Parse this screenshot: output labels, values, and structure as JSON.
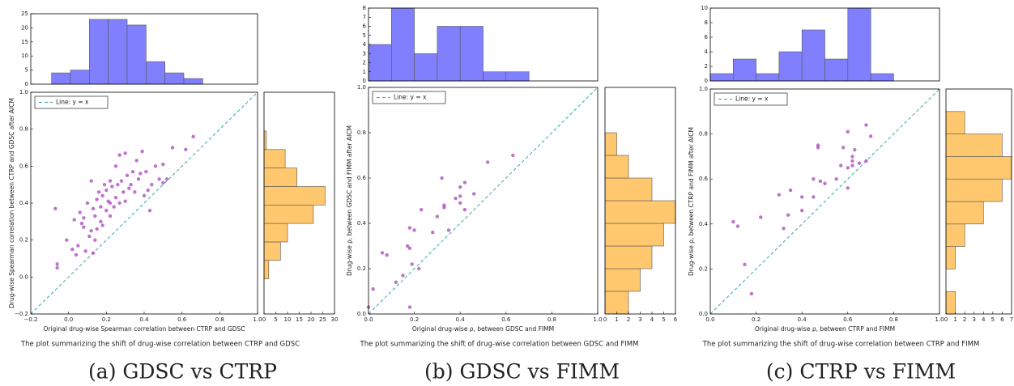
{
  "chart_data": [
    {
      "type": "histogram",
      "orientation": "vertical",
      "color": "#8080ff",
      "bins": [
        -0.09,
        0.01,
        0.11,
        0.21,
        0.31,
        0.41,
        0.51,
        0.61,
        0.71
      ],
      "values": [
        4,
        5,
        23,
        23,
        21,
        8,
        4,
        2
      ],
      "xlim": [
        -0.2,
        1.0
      ],
      "ylim": [
        0,
        25
      ],
      "yticks": [
        0,
        5,
        10,
        15,
        20,
        25
      ]
    },
    {
      "type": "scatter",
      "color": "#a845b8",
      "legend": "upper left",
      "xlabel": "Original drug-wise Spearman correlation between CTRP and GDSC",
      "ylabel": "Drug-wise Spearman correlation between CTRP and GDSC after AICM",
      "note": "The plot summarizing the shift of drug-wise correlation between CTRP and GDSC",
      "caption": "(a) GDSC vs CTRP",
      "reference_line": {
        "label": "Line: y = x",
        "color": "#3aa5a8"
      },
      "xlim": [
        -0.2,
        1.0
      ],
      "ylim": [
        -0.2,
        1.0
      ],
      "xticks": [
        {
          "value": -0.2,
          "label": "−0.2"
        },
        {
          "value": 0,
          "label": "0.0"
        },
        0.2,
        0.4,
        0.6,
        0.8,
        {
          "value": 1,
          "label": "1.0"
        }
      ],
      "yticks": [
        {
          "value": -0.2,
          "label": "−0.2"
        },
        {
          "value": 0,
          "label": "0.0"
        },
        0.2,
        0.4,
        0.6,
        0.8,
        {
          "value": 1,
          "label": "1.0"
        }
      ],
      "x": [
        -0.07,
        -0.06,
        -0.06,
        -0.01,
        0.02,
        0.03,
        0.04,
        0.05,
        0.06,
        0.07,
        0.08,
        0.09,
        0.1,
        0.11,
        0.12,
        0.12,
        0.13,
        0.13,
        0.14,
        0.15,
        0.15,
        0.16,
        0.17,
        0.17,
        0.18,
        0.19,
        0.2,
        0.2,
        0.21,
        0.22,
        0.22,
        0.23,
        0.24,
        0.25,
        0.25,
        0.26,
        0.27,
        0.27,
        0.28,
        0.29,
        0.3,
        0.3,
        0.31,
        0.32,
        0.33,
        0.34,
        0.35,
        0.36,
        0.37,
        0.38,
        0.39,
        0.4,
        0.41,
        0.42,
        0.43,
        0.44,
        0.46,
        0.48,
        0.5,
        0.5,
        0.52,
        0.55,
        0.62,
        0.66,
        0.18,
        0.14,
        0.22,
        0.08
      ],
      "values": [
        0.37,
        0.05,
        0.07,
        0.2,
        0.15,
        0.31,
        0.12,
        0.17,
        0.35,
        0.29,
        0.32,
        0.14,
        0.4,
        0.22,
        0.25,
        0.52,
        0.37,
        0.13,
        0.2,
        0.42,
        0.26,
        0.46,
        0.38,
        0.3,
        0.44,
        0.5,
        0.36,
        0.47,
        0.41,
        0.52,
        0.4,
        0.49,
        0.38,
        0.6,
        0.43,
        0.5,
        0.66,
        0.4,
        0.52,
        0.46,
        0.67,
        0.41,
        0.55,
        0.48,
        0.5,
        0.57,
        0.46,
        0.63,
        0.53,
        0.56,
        0.68,
        0.44,
        0.57,
        0.47,
        0.36,
        0.5,
        0.6,
        0.53,
        0.61,
        0.51,
        0.53,
        0.7,
        0.69,
        0.76,
        0.28,
        0.33,
        0.33,
        0.27
      ]
    },
    {
      "type": "histogram",
      "orientation": "horizontal",
      "color": "#ffc86e",
      "bins": [
        -0.01,
        0.09,
        0.19,
        0.29,
        0.39,
        0.49,
        0.59,
        0.69,
        0.79
      ],
      "values": [
        2,
        7,
        10,
        21,
        26,
        14,
        9,
        1
      ],
      "ylim": [
        -0.2,
        1.0
      ],
      "xlim": [
        0,
        30
      ],
      "xticks": [
        0,
        5,
        10,
        15,
        20,
        25,
        30
      ]
    },
    {
      "type": "histogram",
      "orientation": "vertical",
      "color": "#8080ff",
      "bins": [
        0.0,
        0.1,
        0.2,
        0.3,
        0.4,
        0.5,
        0.6,
        0.7
      ],
      "values": [
        4,
        8,
        3,
        6,
        6,
        1,
        1
      ],
      "xlim": [
        0,
        1.0
      ],
      "ylim": [
        0,
        8
      ],
      "yticks": [
        0,
        1,
        2,
        3,
        4,
        5,
        6,
        7,
        8
      ]
    },
    {
      "type": "scatter",
      "color": "#a845b8",
      "legend": "upper left",
      "xlabel": "Original drug-wise ρ, between GDSC and FIMM",
      "ylabel": "Drug-wise ρ, between GDSC and FIMM after AICM",
      "note": "The plot summarizing the shift of drug-wise correlation between GDSC and FIMM",
      "caption": "(b) GDSC vs FIMM",
      "reference_line": {
        "label": "Line: y = x",
        "color": "#3aa5a8"
      },
      "xlim": [
        0,
        1.0
      ],
      "ylim": [
        0,
        1.0
      ],
      "xticks": [
        {
          "value": 0,
          "label": "0.0"
        },
        0.2,
        0.4,
        0.6,
        0.8,
        {
          "value": 1,
          "label": "1.0"
        }
      ],
      "yticks": [
        {
          "value": 0,
          "label": "0.0"
        },
        0.2,
        0.4,
        0.6,
        0.8,
        {
          "value": 1,
          "label": "1.0"
        }
      ],
      "x": [
        0.0,
        0.02,
        0.06,
        0.08,
        0.12,
        0.15,
        0.18,
        0.18,
        0.19,
        0.18,
        0.2,
        0.22,
        0.23,
        0.28,
        0.3,
        0.32,
        0.33,
        0.33,
        0.35,
        0.38,
        0.4,
        0.4,
        0.42,
        0.42,
        0.46,
        0.52,
        0.63,
        0.4,
        0.17
      ],
      "values": [
        0.03,
        0.11,
        0.27,
        0.26,
        0.14,
        0.17,
        0.29,
        0.03,
        0.22,
        0.38,
        0.37,
        0.2,
        0.46,
        0.36,
        0.43,
        0.6,
        0.48,
        0.47,
        0.37,
        0.51,
        0.49,
        0.56,
        0.46,
        0.58,
        0.53,
        0.67,
        0.7,
        0.52,
        0.3
      ]
    },
    {
      "type": "histogram",
      "orientation": "horizontal",
      "color": "#ffc86e",
      "bins": [
        0.0,
        0.1,
        0.2,
        0.3,
        0.4,
        0.5,
        0.6,
        0.7,
        0.8
      ],
      "values": [
        2,
        3,
        4,
        5,
        6,
        4,
        2,
        1
      ],
      "ylim": [
        0,
        1.0
      ],
      "xlim": [
        0,
        6
      ],
      "xticks": [
        0,
        1,
        2,
        3,
        4,
        5,
        6
      ]
    },
    {
      "type": "histogram",
      "orientation": "vertical",
      "color": "#8080ff",
      "bins": [
        0.0,
        0.1,
        0.2,
        0.3,
        0.4,
        0.5,
        0.6,
        0.7,
        0.8
      ],
      "values": [
        1,
        3,
        1,
        4,
        7,
        3,
        10,
        1
      ],
      "xlim": [
        0,
        1.0
      ],
      "ylim": [
        0,
        10
      ],
      "yticks": [
        0,
        2,
        4,
        6,
        8,
        10
      ]
    },
    {
      "type": "scatter",
      "color": "#a845b8",
      "legend": "upper left",
      "xlabel": "Original drug-wise ρ, between CTRP and FIMM",
      "ylabel": "Drug-wise ρ, between CTRP and FIMM after AICM",
      "note": "The plot summarizing the shift of drug-wise correlation between CTRP and FIMM",
      "caption": "(c) CTRP vs FIMM",
      "reference_line": {
        "label": "Line: y = x",
        "color": "#3aa5a8"
      },
      "xlim": [
        0,
        1.0
      ],
      "ylim": [
        0,
        1.0
      ],
      "xticks": [
        {
          "value": 0,
          "label": "0.0"
        },
        0.2,
        0.4,
        0.6,
        0.8,
        {
          "value": 1,
          "label": "1.0"
        }
      ],
      "yticks": [
        {
          "value": 0,
          "label": "0.0"
        },
        0.2,
        0.4,
        0.6,
        0.8,
        {
          "value": 1,
          "label": "1.0"
        }
      ],
      "x": [
        0.1,
        0.12,
        0.15,
        0.18,
        0.22,
        0.3,
        0.32,
        0.34,
        0.35,
        0.4,
        0.4,
        0.45,
        0.45,
        0.47,
        0.47,
        0.48,
        0.5,
        0.55,
        0.57,
        0.58,
        0.6,
        0.6,
        0.6,
        0.62,
        0.62,
        0.63,
        0.65,
        0.68,
        0.7,
        0.68,
        0.62
      ],
      "values": [
        0.41,
        0.39,
        0.22,
        0.09,
        0.43,
        0.53,
        0.38,
        0.44,
        0.55,
        0.52,
        0.46,
        0.52,
        0.6,
        0.75,
        0.74,
        0.59,
        0.58,
        0.6,
        0.66,
        0.74,
        0.81,
        0.56,
        0.65,
        0.68,
        0.7,
        0.73,
        0.67,
        0.84,
        0.79,
        0.68,
        0.66
      ]
    },
    {
      "type": "histogram",
      "orientation": "horizontal",
      "color": "#ffc86e",
      "bins": [
        0.0,
        0.1,
        0.2,
        0.3,
        0.4,
        0.5,
        0.6,
        0.7,
        0.8,
        0.9
      ],
      "values": [
        1,
        0,
        1,
        2,
        4,
        6,
        7,
        6,
        2
      ],
      "ylim": [
        0,
        1.0
      ],
      "xlim": [
        0,
        7
      ],
      "xticks": [
        0,
        1,
        2,
        3,
        4,
        5,
        6,
        7
      ]
    }
  ]
}
